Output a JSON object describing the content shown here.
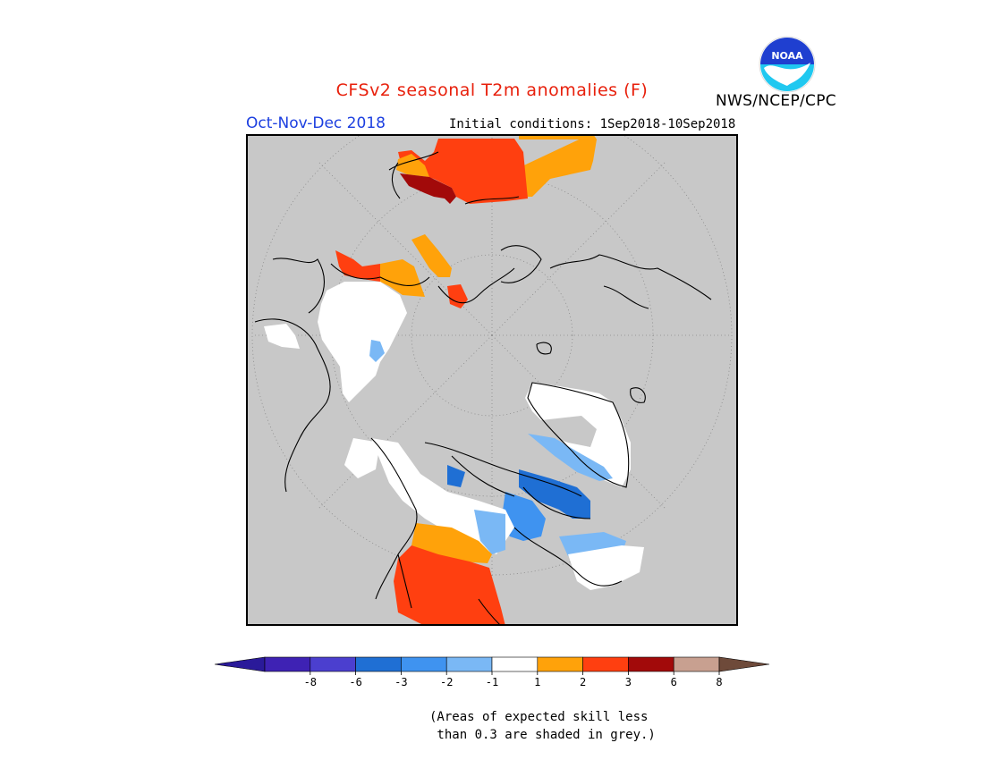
{
  "header": {
    "title": "CFSv2 seasonal T2m anomalies (F)",
    "agency": "NWS/NCEP/CPC",
    "season": "Oct-Nov-Dec 2018",
    "initial_conditions": "Initial conditions: 1Sep2018-10Sep2018",
    "logo_text": "NOAA"
  },
  "legend": {
    "tick_labels": [
      "-8",
      "-6",
      "-3",
      "-2",
      "-1",
      "1",
      "2",
      "3",
      "6",
      "8"
    ],
    "colors": [
      "#3e22b4",
      "#4b3fcf",
      "#1f6fd4",
      "#3f93f0",
      "#7ab8f5",
      "#ffffff",
      "#ffa20a",
      "#ff3f10",
      "#a20a0a",
      "#c8a090",
      "#6e4a3a"
    ],
    "low_arrow_color": "#2a1a9a",
    "high_arrow_color": "#6e4a3a"
  },
  "note": {
    "line1": "(Areas of expected skill less",
    "line2": " than 0.3 are shaded in grey.)"
  },
  "colors": {
    "skill_grey": "#c8c8c8",
    "coast": "#000000"
  }
}
